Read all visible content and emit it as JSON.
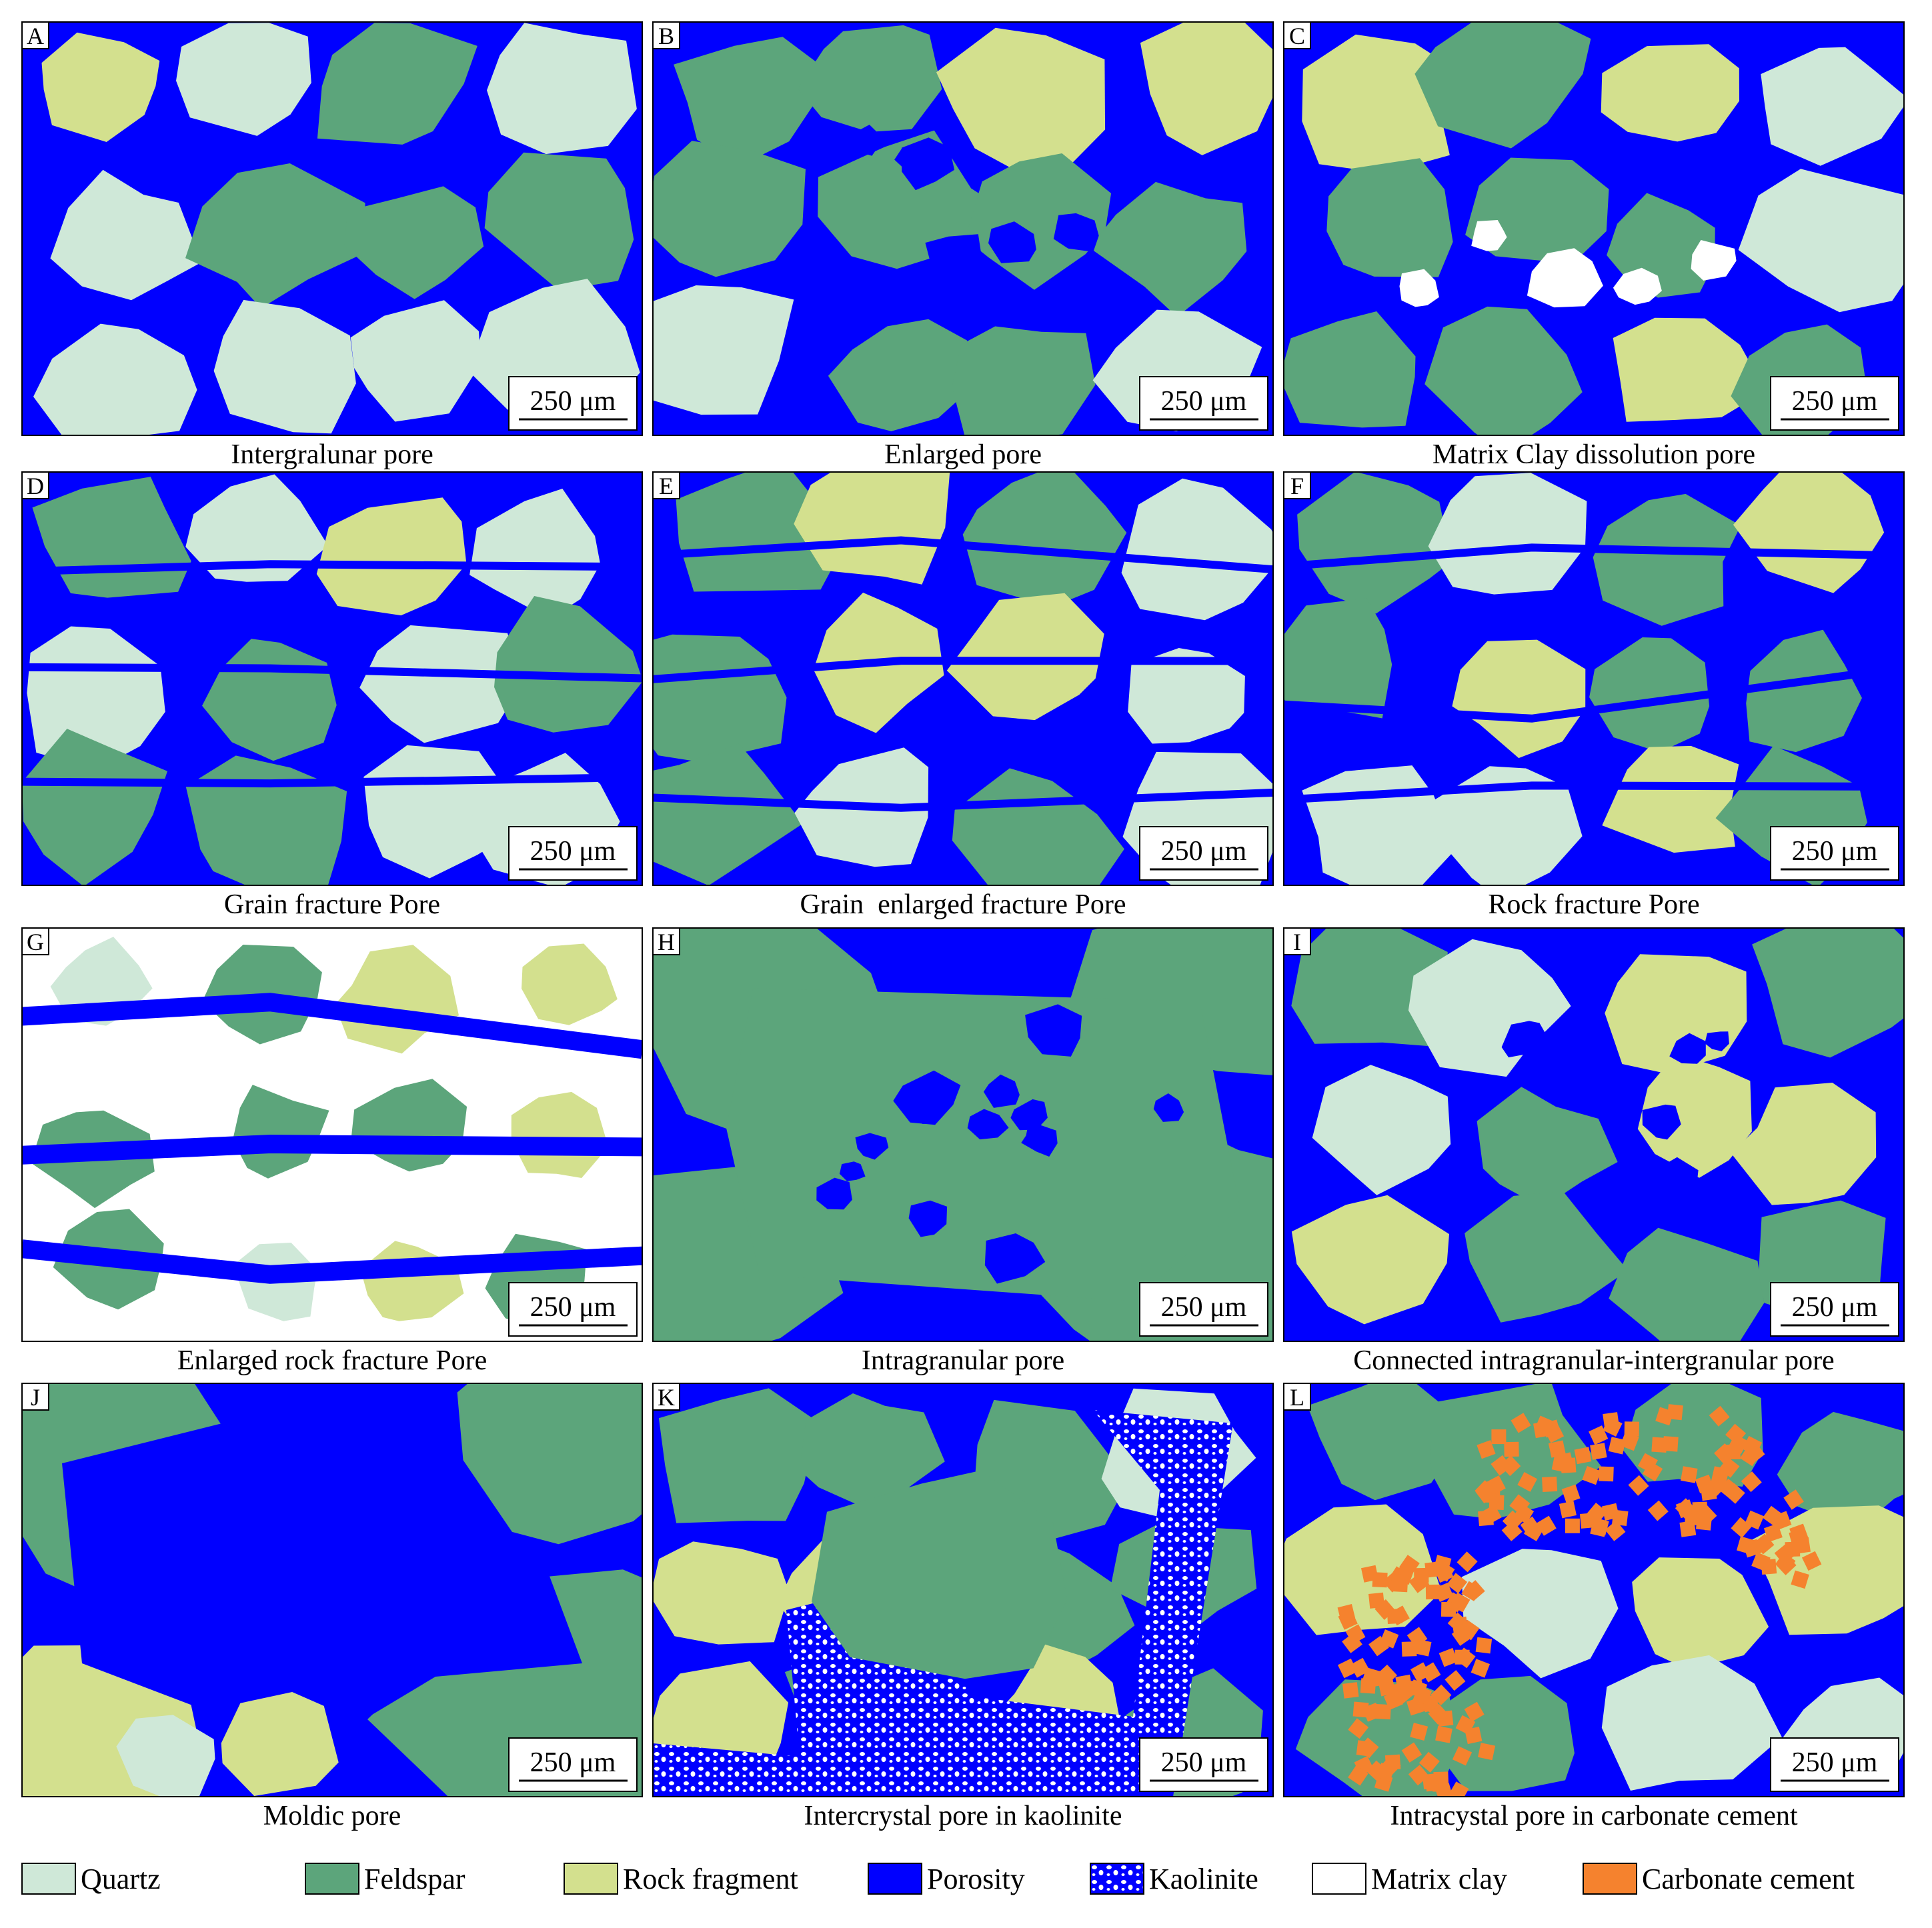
{
  "panels": [
    {
      "letter": "A",
      "caption": "Intergralunar pore",
      "scale": "250 μm"
    },
    {
      "letter": "B",
      "caption": "Enlarged pore",
      "scale": "250 μm"
    },
    {
      "letter": "C",
      "caption": "Matrix Clay dissolution pore",
      "scale": "250 μm"
    },
    {
      "letter": "D",
      "caption": "Grain fracture Pore",
      "scale": "250 μm"
    },
    {
      "letter": "E",
      "caption": "Grain  enlarged fracture Pore",
      "scale": "250 μm"
    },
    {
      "letter": "F",
      "caption": "Rock fracture Pore",
      "scale": "250 μm"
    },
    {
      "letter": "G",
      "caption": "Enlarged rock fracture Pore",
      "scale": "250 μm"
    },
    {
      "letter": "H",
      "caption": "Intragranular pore",
      "scale": "250 μm"
    },
    {
      "letter": "I",
      "caption": "Connected intragranular-intergranular pore",
      "scale": "250 μm"
    },
    {
      "letter": "J",
      "caption": "Moldic pore",
      "scale": "250 μm"
    },
    {
      "letter": "K",
      "caption": "Intercrystal pore in kaolinite",
      "scale": "250 μm"
    },
    {
      "letter": "L",
      "caption": "Intracystal pore in carbonate cement",
      "scale": "250 μm"
    }
  ],
  "legend": [
    {
      "label": "Quartz",
      "color": "#cfe8d8"
    },
    {
      "label": "Feldspar",
      "color": "#5ca57b"
    },
    {
      "label": "Rock fragment",
      "color": "#d3e08e"
    },
    {
      "label": "Porosity",
      "color": "#0000ff"
    },
    {
      "label": "Kaolinite"
    },
    {
      "label": "Matrix clay",
      "color": "#ffffff"
    },
    {
      "label": "Carbonate cement",
      "color": "#f5822e"
    }
  ]
}
